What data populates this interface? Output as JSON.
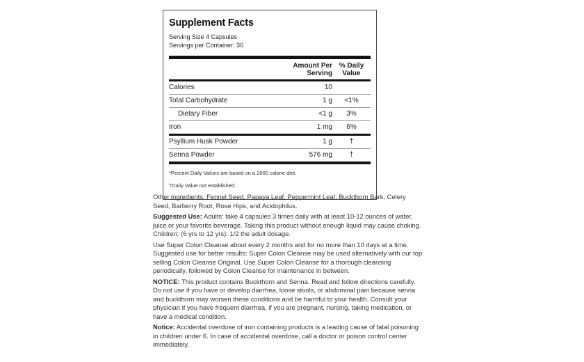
{
  "label": {
    "title": "Supplement Facts",
    "serving_size": "Serving Size 4 Capsules",
    "servings_per_container": "Servings per Container: 30",
    "columns": {
      "amount": "Amount Per\nServing",
      "daily_value": "% Daily\nValue"
    },
    "rows": [
      {
        "name": "Calories",
        "amount": "10",
        "dv": ""
      },
      {
        "name": "Total Carbohydrate",
        "amount": "1 g",
        "dv": "<1%"
      },
      {
        "name": "Dietary Fiber",
        "amount": "<1 g",
        "dv": "3%"
      },
      {
        "name": "Iron",
        "amount": "1 mg",
        "dv": "6%"
      },
      {
        "name": "Psyllium Husk Powder",
        "amount": "1 g",
        "dv": "†"
      },
      {
        "name": "Senna Powder",
        "amount": "576 mg",
        "dv": "†"
      }
    ],
    "footnotes": {
      "percent": "*Percent Daily Values are based on a 2000 calorie diet.",
      "dagger": "†Daily Value not established."
    }
  },
  "body": {
    "paragraphs": [
      {
        "lead": "",
        "text": "Other ingredients: Fennel Seed, Papaya Leaf, Peppermint Leaf, Buckthorn Bark, Celery\nSeed, Barberry Root, Rose Hips, and Acidophilus."
      },
      {
        "lead": "Suggested Use:",
        "text": " Adults: take 4 capsules 3 times daily with at least 10-12 ounces of water,\njuice or your favorite beverage. Taking this product without enough liquid may cause choking.\nChildren: (6 yrs to 12 yrs): 1/2 the adult dosage."
      },
      {
        "lead": "",
        "text": "Use Super Colon Cleanse about every 2 months and for no more than 10 days at a time.\nSuggested use for better results: Super Colon Cleanse may be used alternatively with our top\nselling Colon Cleanse Original. Use Super Colon Cleanse for a thorough cleansing\nperiodically, followed by Colon Cleanse for maintenance in between."
      },
      {
        "lead": "NOTICE:",
        "text": " This product contains Buckthorn and Senna. Read and follow directions carefully.\nDo not use if you have or develop diarrhea, loose stools, or abdominal pain because senna\nand buckthorn may worsen these conditions and be harmful to your health. Consult your\nphysician if you have frequent diarrhea, if you are pregnant, nursing, taking medication, or\nhave a medical condition."
      },
      {
        "lead": "Notice:",
        "text": " Accidental overdose of iron containing products is a leading cause of fatal poisoning\nin children under 6. In case of accidental overdose, call a doctor or poison control center\nimmediately."
      }
    ]
  },
  "colors": {
    "background": "#ffffff",
    "panel_border": "#454545",
    "bar": "#121212",
    "thin_rule": "#999999",
    "text": "#1c1c1c",
    "body_text": "#333333"
  }
}
